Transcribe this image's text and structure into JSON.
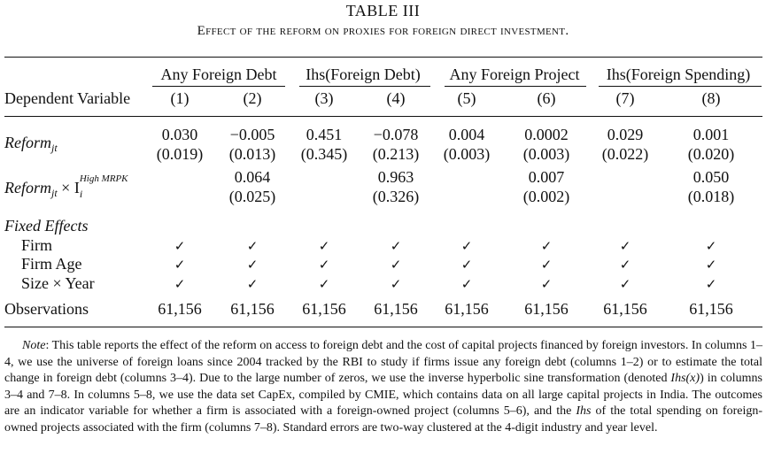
{
  "table": {
    "title": "TABLE III",
    "subtitle": "Effect of the reform on proxies for foreign direct investment.",
    "groups": [
      "Any Foreign Debt",
      "Ihs(Foreign Debt)",
      "Any Foreign Project",
      "Ihs(Foreign Spending)"
    ],
    "dep_label": "Dependent Variable",
    "columns": [
      "(1)",
      "(2)",
      "(3)",
      "(4)",
      "(5)",
      "(6)",
      "(7)",
      "(8)"
    ],
    "reform_label": "Reform",
    "reform_sub": "jt",
    "reform_coef": [
      "0.030",
      "−0.005",
      "0.451",
      "−0.078",
      "0.004",
      "0.0002",
      "0.029",
      "0.001"
    ],
    "reform_se": [
      "(0.019)",
      "(0.013)",
      "(0.345)",
      "(0.213)",
      "(0.003)",
      "(0.003)",
      "(0.022)",
      "(0.020)"
    ],
    "inter_label_a": "Reform",
    "inter_sub_a": "jt",
    "inter_times": " × I",
    "inter_sub_i": "i",
    "inter_sup": "High MRPK",
    "inter_coef": [
      "0.064",
      "0.963",
      "0.007",
      "0.050"
    ],
    "inter_se": [
      "(0.025)",
      "(0.326)",
      "(0.002)",
      "(0.018)"
    ],
    "fe_label": "Fixed Effects",
    "fe_rows": [
      "Firm",
      "Firm Age",
      "Size × Year"
    ],
    "check": "✓",
    "obs_label": "Observations",
    "obs": [
      "61,156",
      "61,156",
      "61,156",
      "61,156",
      "61,156",
      "61,156",
      "61,156",
      "61,156"
    ]
  },
  "note": {
    "label": "Note",
    "text_a": ": This table reports the effect of the reform on access to foreign debt and the cost of capital projects financed by foreign investors. In columns 1–4, we use the universe of foreign loans since 2004 tracked by the RBI to study if firms issue any foreign debt (columns 1–2) or to estimate the total change in foreign debt (columns 3–4). Due to the large number of zeros, we use the inverse hyperbolic sine transformation (denoted ",
    "ihs_x": "Ihs(x)",
    "text_b": ") in columns 3–4 and 7–8. In columns 5–8, we use the data set CapEx, compiled by CMIE, which contains data on all large capital projects in India. The outcomes are an indicator variable for whether a firm is associated with a foreign-owned project (columns 5–6), and the ",
    "ihs": "Ihs",
    "text_c": " of the total spending on foreign-owned projects associated with the firm (columns 7–8). Standard errors are two-way clustered at the 4-digit industry and year level."
  }
}
